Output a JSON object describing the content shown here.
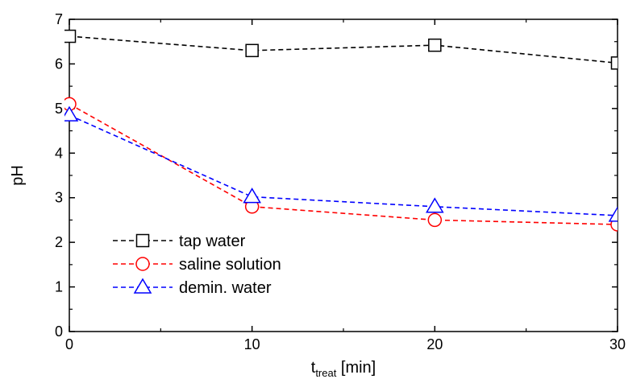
{
  "chart_data": {
    "type": "line",
    "xlabel": {
      "main": "t",
      "sub": "treat",
      "unit": " [min]"
    },
    "ylabel": "pH",
    "xlim": [
      0,
      30
    ],
    "ylim": [
      0,
      7
    ],
    "xticks": [
      0,
      10,
      20,
      30
    ],
    "yticks": [
      0,
      1,
      2,
      3,
      4,
      5,
      6,
      7
    ],
    "grid": false,
    "legend_position": "bottom-left",
    "x": [
      0,
      10,
      20,
      30
    ],
    "series": [
      {
        "name": "tap water",
        "marker": "square",
        "color": "#000000",
        "values": [
          6.62,
          6.3,
          6.42,
          6.02
        ]
      },
      {
        "name": "saline solution",
        "marker": "circle",
        "color": "#ff0000",
        "values": [
          5.1,
          2.8,
          2.5,
          2.4
        ]
      },
      {
        "name": "demin. water",
        "marker": "triangle",
        "color": "#0000ff",
        "values": [
          4.85,
          3.02,
          2.8,
          2.6
        ]
      }
    ]
  }
}
